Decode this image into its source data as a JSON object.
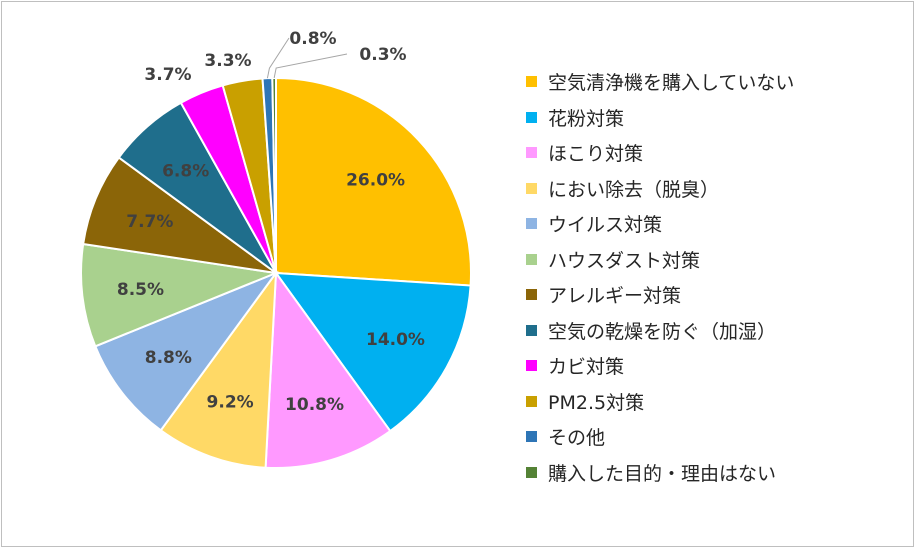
{
  "chart_data": {
    "type": "pie",
    "title": "",
    "legend_position": "right",
    "categories": [
      "空気清浄機を購入していない",
      "花粉対策",
      "ほこり対策",
      "におい除去（脱臭）",
      "ウイルス対策",
      "ハウスダスト対策",
      "アレルギー対策",
      "空気の乾燥を防ぐ（加湿）",
      "カビ対策",
      "PM2.5対策",
      "その他",
      "購入した目的・理由はない"
    ],
    "values": [
      26.0,
      14.0,
      10.8,
      9.2,
      8.8,
      8.5,
      7.7,
      6.8,
      3.7,
      3.3,
      0.8,
      0.3
    ],
    "labels": [
      "26.0%",
      "14.0%",
      "10.8%",
      "9.2%",
      "8.8%",
      "8.5%",
      "7.7%",
      "6.8%",
      "3.7%",
      "3.3%",
      "0.8%",
      "0.3%"
    ],
    "colors": [
      "#FFC000",
      "#00B0F0",
      "#FF99FF",
      "#FFD966",
      "#8EB4E3",
      "#A9D18E",
      "#8B6508",
      "#1F6E8C",
      "#FF00FF",
      "#C9A000",
      "#2E75B6",
      "#548235"
    ]
  }
}
